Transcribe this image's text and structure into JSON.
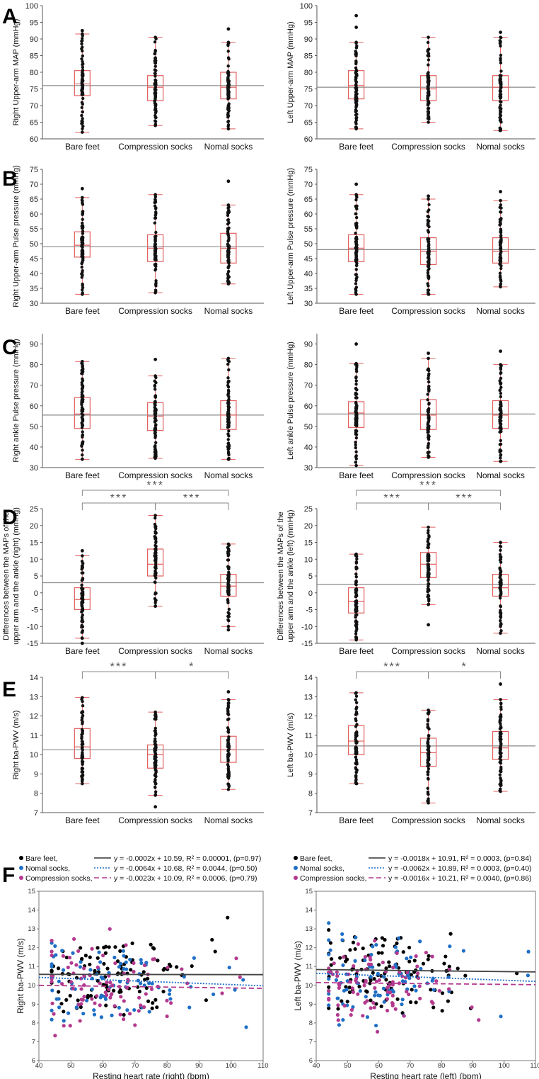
{
  "figure": {
    "panel_labels": [
      "A",
      "B",
      "C",
      "D",
      "E",
      "F"
    ]
  },
  "chart_data": [
    {
      "id": "A-right",
      "panel": "A",
      "side": "right",
      "type": "box",
      "ylabel": "Right Upper-arm MAP (mmHg)",
      "ylim": [
        60,
        100
      ],
      "ticks": [
        60,
        65,
        70,
        75,
        80,
        85,
        90,
        95,
        100
      ],
      "categories": [
        "Bare feet",
        "Compression socks",
        "Nomal socks"
      ],
      "reference_line": 76,
      "boxes": [
        {
          "min": 62,
          "q1": 73,
          "median": 76.5,
          "q3": 80.5,
          "max": 91.5,
          "outliers": [
            92.5
          ]
        },
        {
          "min": 64,
          "q1": 71.5,
          "median": 75.5,
          "q3": 79,
          "max": 90.5,
          "outliers": []
        },
        {
          "min": 63,
          "q1": 72,
          "median": 75.5,
          "q3": 80,
          "max": 89,
          "outliers": [
            93
          ]
        }
      ]
    },
    {
      "id": "A-left",
      "panel": "A",
      "side": "left",
      "type": "box",
      "ylabel": "Left Upper-arm MAP (mmHg)",
      "ylim": [
        60,
        100
      ],
      "ticks": [
        60,
        65,
        70,
        75,
        80,
        85,
        90,
        95,
        100
      ],
      "categories": [
        "Bare feet",
        "Compression socks",
        "Nomal socks"
      ],
      "reference_line": 75.5,
      "boxes": [
        {
          "min": 63,
          "q1": 72,
          "median": 76,
          "q3": 80.5,
          "max": 89,
          "outliers": [
            93.5,
            97
          ]
        },
        {
          "min": 65,
          "q1": 71.5,
          "median": 75,
          "q3": 79,
          "max": 90.5,
          "outliers": []
        },
        {
          "min": 62.5,
          "q1": 71.5,
          "median": 75.5,
          "q3": 79,
          "max": 90.5,
          "outliers": [
            92
          ]
        }
      ]
    },
    {
      "id": "B-right",
      "panel": "B",
      "side": "right",
      "type": "box",
      "ylabel": "Right Upper-arm Pulse pressure (mmHg)",
      "ylim": [
        30,
        75
      ],
      "ticks": [
        30,
        35,
        40,
        45,
        50,
        55,
        60,
        65,
        70,
        75
      ],
      "categories": [
        "Bare feet",
        "Compression socks",
        "Nomal socks"
      ],
      "reference_line": 49,
      "boxes": [
        {
          "min": 33,
          "q1": 45.5,
          "median": 49.5,
          "q3": 54,
          "max": 65.5,
          "outliers": [
            68.5
          ]
        },
        {
          "min": 33.5,
          "q1": 44,
          "median": 48.5,
          "q3": 53,
          "max": 66.5,
          "outliers": []
        },
        {
          "min": 36.5,
          "q1": 43.5,
          "median": 48.5,
          "q3": 53.5,
          "max": 63,
          "outliers": [
            71
          ]
        }
      ]
    },
    {
      "id": "B-left",
      "panel": "B",
      "side": "left",
      "type": "box",
      "ylabel": "Left Upper-arm Pulse pressure (mmHg)",
      "ylim": [
        30,
        75
      ],
      "ticks": [
        30,
        35,
        40,
        45,
        50,
        55,
        60,
        65,
        70,
        75
      ],
      "categories": [
        "Bare feet",
        "Compression socks",
        "Nomal socks"
      ],
      "reference_line": 48,
      "boxes": [
        {
          "min": 33,
          "q1": 44,
          "median": 48.5,
          "q3": 53,
          "max": 66.5,
          "outliers": [
            70
          ]
        },
        {
          "min": 33,
          "q1": 43,
          "median": 47.5,
          "q3": 52,
          "max": 65,
          "outliers": [
            66
          ]
        },
        {
          "min": 35.5,
          "q1": 43.5,
          "median": 47.5,
          "q3": 52,
          "max": 64.5,
          "outliers": [
            67.5
          ]
        }
      ]
    },
    {
      "id": "C-right",
      "panel": "C",
      "side": "right",
      "type": "box",
      "ylabel": "Right ankle Pulse pressure (mmHg)",
      "ylim": [
        30,
        95
      ],
      "ticks": [
        30,
        40,
        50,
        60,
        70,
        80,
        90
      ],
      "categories": [
        "Bare feet",
        "Compression socks",
        "Nomal socks"
      ],
      "reference_line": 55.5,
      "boxes": [
        {
          "min": 34,
          "q1": 49,
          "median": 56,
          "q3": 64,
          "max": 81.5,
          "outliers": []
        },
        {
          "min": 34.5,
          "q1": 48,
          "median": 55,
          "q3": 61.5,
          "max": 74.5,
          "outliers": [
            82.5
          ]
        },
        {
          "min": 34,
          "q1": 48.5,
          "median": 55.5,
          "q3": 62.5,
          "max": 83,
          "outliers": []
        }
      ]
    },
    {
      "id": "C-left",
      "panel": "C",
      "side": "left",
      "type": "box",
      "ylabel": "Left ankle Pulse pressure (mmHg)",
      "ylim": [
        30,
        95
      ],
      "ticks": [
        30,
        40,
        50,
        60,
        70,
        80,
        90
      ],
      "categories": [
        "Bare feet",
        "Compression socks",
        "Nomal socks"
      ],
      "reference_line": 56,
      "boxes": [
        {
          "min": 31,
          "q1": 49.5,
          "median": 56.5,
          "q3": 62,
          "max": 80.5,
          "outliers": [
            90
          ]
        },
        {
          "min": 35,
          "q1": 48.5,
          "median": 55.5,
          "q3": 63,
          "max": 83,
          "outliers": [
            85.5
          ]
        },
        {
          "min": 33,
          "q1": 49,
          "median": 55.5,
          "q3": 62.5,
          "max": 80,
          "outliers": [
            86.5
          ]
        }
      ]
    },
    {
      "id": "D-right",
      "panel": "D",
      "side": "right",
      "type": "box",
      "ylabel_lines": [
        "Differences between the MAPs of the",
        "upper arm and the ankle (right) (mmHg)"
      ],
      "ylim": [
        -15,
        25
      ],
      "ticks": [
        -15,
        -10,
        -5,
        0,
        5,
        10,
        15,
        20,
        25
      ],
      "categories": [
        "Bare feet",
        "Compression socks",
        "Nomal socks"
      ],
      "reference_line": 3,
      "boxes": [
        {
          "min": -13.5,
          "q1": -5,
          "median": -2,
          "q3": 1.5,
          "max": 11,
          "outliers": [
            -15,
            12.5
          ]
        },
        {
          "min": -4,
          "q1": 5,
          "median": 8.5,
          "q3": 13,
          "max": 23,
          "outliers": []
        },
        {
          "min": -10,
          "q1": -1,
          "median": 2,
          "q3": 5.5,
          "max": 14.5,
          "outliers": [
            -11
          ]
        }
      ],
      "significance": [
        {
          "from": 0,
          "to": 1,
          "label": "***",
          "level": 1
        },
        {
          "from": 1,
          "to": 2,
          "label": "***",
          "level": 1
        },
        {
          "from": 0,
          "to": 2,
          "label": "***",
          "level": 2
        }
      ]
    },
    {
      "id": "D-left",
      "panel": "D",
      "side": "left",
      "type": "box",
      "ylabel_lines": [
        "Differences between the MAPs of the",
        "upper arm and the ankle (left) (mmHg)"
      ],
      "ylim": [
        -15,
        25
      ],
      "ticks": [
        -15,
        -10,
        -5,
        0,
        5,
        10,
        15,
        20,
        25
      ],
      "categories": [
        "Bare feet",
        "Compression socks",
        "Nomal socks"
      ],
      "reference_line": 2.5,
      "boxes": [
        {
          "min": -14,
          "q1": -6,
          "median": -2.5,
          "q3": 1.5,
          "max": 11.5,
          "outliers": []
        },
        {
          "min": -3.5,
          "q1": 4.5,
          "median": 8.5,
          "q3": 12,
          "max": 19.5,
          "outliers": [
            -9.5
          ]
        },
        {
          "min": -12,
          "q1": -1,
          "median": 1.5,
          "q3": 5.5,
          "max": 15,
          "outliers": []
        }
      ],
      "significance": [
        {
          "from": 0,
          "to": 1,
          "label": "***",
          "level": 1
        },
        {
          "from": 1,
          "to": 2,
          "label": "***",
          "level": 1
        },
        {
          "from": 0,
          "to": 2,
          "label": "***",
          "level": 2
        }
      ]
    },
    {
      "id": "E-right",
      "panel": "E",
      "side": "right",
      "type": "box",
      "ylabel": "Right ba-PWV (m/s)",
      "ylim": [
        7,
        14
      ],
      "ticks": [
        7,
        8,
        9,
        10,
        11,
        12,
        13,
        14
      ],
      "categories": [
        "Bare feet",
        "Compression socks",
        "Nomal socks"
      ],
      "reference_line": 10.25,
      "boxes": [
        {
          "min": 8.5,
          "q1": 9.8,
          "median": 10.4,
          "q3": 11.35,
          "max": 12.95,
          "outliers": []
        },
        {
          "min": 7.9,
          "q1": 9.3,
          "median": 10.0,
          "q3": 10.5,
          "max": 12.2,
          "outliers": [
            7.3
          ]
        },
        {
          "min": 8.2,
          "q1": 9.6,
          "median": 10.25,
          "q3": 10.95,
          "max": 12.85,
          "outliers": [
            13.25
          ]
        }
      ],
      "significance": [
        {
          "from": 0,
          "to": 1,
          "label": "***",
          "level": 1
        },
        {
          "from": 1,
          "to": 2,
          "label": "*",
          "level": 1
        }
      ]
    },
    {
      "id": "E-left",
      "panel": "E",
      "side": "left",
      "type": "box",
      "ylabel": "Left ba-PWV (m/s)",
      "ylim": [
        7,
        14
      ],
      "ticks": [
        7,
        8,
        9,
        10,
        11,
        12,
        13,
        14
      ],
      "categories": [
        "Bare feet",
        "Compression socks",
        "Nomal socks"
      ],
      "reference_line": 10.45,
      "boxes": [
        {
          "min": 8.5,
          "q1": 10.0,
          "median": 10.7,
          "q3": 11.5,
          "max": 13.2,
          "outliers": []
        },
        {
          "min": 7.5,
          "q1": 9.4,
          "median": 10.1,
          "q3": 10.85,
          "max": 12.3,
          "outliers": []
        },
        {
          "min": 8.1,
          "q1": 9.75,
          "median": 10.35,
          "q3": 11.2,
          "max": 12.85,
          "outliers": [
            13.65
          ]
        }
      ],
      "significance": [
        {
          "from": 0,
          "to": 1,
          "label": "***",
          "level": 1
        },
        {
          "from": 1,
          "to": 2,
          "label": "*",
          "level": 1
        }
      ]
    },
    {
      "id": "F-right",
      "panel": "F",
      "side": "right",
      "type": "scatter",
      "xlabel": "Resting heart rate (right) (bpm)",
      "ylabel": "Right ba-PWV (m/s)",
      "xlim": [
        40,
        110
      ],
      "ylim": [
        6,
        15
      ],
      "xticks": [
        40,
        50,
        60,
        70,
        80,
        90,
        100,
        110
      ],
      "yticks": [
        6,
        7,
        8,
        9,
        10,
        11,
        12,
        13,
        14,
        15
      ],
      "series": [
        {
          "name": "Bare feet,",
          "color": "#000000",
          "line_style": "solid",
          "slope": -0.0002,
          "intercept": 10.59,
          "fit_label": "y = -0.0002x + 10.59, R² = 0.00001, (p=0.97)",
          "n": 110,
          "seed": 11
        },
        {
          "name": "Nomal socks,",
          "color": "#1f6fc6",
          "line_style": "dotted",
          "slope": -0.0064,
          "intercept": 10.68,
          "fit_label": "y = -0.0064x + 10.68, R² = 0.0044, (p=0.50)",
          "n": 90,
          "seed": 23
        },
        {
          "name": "Compression socks,",
          "color": "#b3398e",
          "line_style": "dashed",
          "slope": -0.0023,
          "intercept": 10.09,
          "fit_label": "y = -0.0023x + 10.09, R² = 0.0006, (p=0.79)",
          "n": 90,
          "seed": 37
        }
      ]
    },
    {
      "id": "F-left",
      "panel": "F",
      "side": "left",
      "type": "scatter",
      "xlabel": "Resting heart rate (left) (bpm)",
      "ylabel": "Left ba-PWV (m/s)",
      "xlim": [
        40,
        110
      ],
      "ylim": [
        6,
        15
      ],
      "xticks": [
        40,
        50,
        60,
        70,
        80,
        90,
        100,
        110
      ],
      "yticks": [
        6,
        7,
        8,
        9,
        10,
        11,
        12,
        13,
        14,
        15
      ],
      "series": [
        {
          "name": "Bare feet,",
          "color": "#000000",
          "line_style": "solid",
          "slope": -0.0018,
          "intercept": 10.91,
          "fit_label": "y = -0.0018x + 10.91, R² = 0.0003, (p=0.84)",
          "n": 110,
          "seed": 51
        },
        {
          "name": "Nomal socks,",
          "color": "#1f6fc6",
          "line_style": "dotted",
          "slope": -0.0062,
          "intercept": 10.89,
          "fit_label": "y = -0.0062x + 10.89, R² = 0.0003, (p=0.40)",
          "n": 90,
          "seed": 67
        },
        {
          "name": "Compression socks,",
          "color": "#b3398e",
          "line_style": "dashed",
          "slope": -0.0016,
          "intercept": 10.21,
          "fit_label": "y = -0.0016x + 10.21, R² = 0.0040, (p=0.86)",
          "n": 90,
          "seed": 79
        }
      ]
    }
  ]
}
